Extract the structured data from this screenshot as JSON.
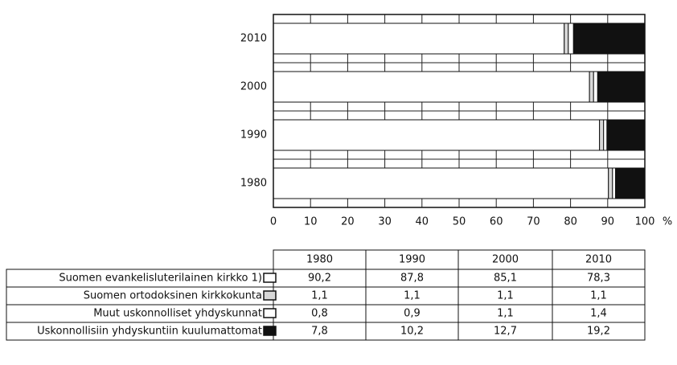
{
  "chart_data": {
    "type": "stacked-bar-horizontal",
    "categories": [
      "1980",
      "1990",
      "2000",
      "2010"
    ],
    "series": [
      {
        "name": "Suomen evankelisluterilainen kirkko 1)",
        "color": "#ffffff",
        "values": [
          90.2,
          87.8,
          85.1,
          78.3
        ],
        "value_labels": [
          "90,2",
          "87,8",
          "85,1",
          "78,3"
        ]
      },
      {
        "name": "Suomen ortodoksinen kirkkokunta",
        "color": "#d8d8d8",
        "values": [
          1.1,
          1.1,
          1.1,
          1.1
        ],
        "value_labels": [
          "1,1",
          "1,1",
          "1,1",
          "1,1"
        ]
      },
      {
        "name": "Muut uskonnolliset yhdyskunnat",
        "color": "#ffffff",
        "values": [
          0.8,
          0.9,
          1.1,
          1.4
        ],
        "value_labels": [
          "0,8",
          "0,9",
          "1,1",
          "1,4"
        ]
      },
      {
        "name": "Uskonnollisiin yhdyskuntiin kuulumattomat",
        "color": "#111111",
        "values": [
          7.8,
          10.2,
          12.7,
          19.2
        ],
        "value_labels": [
          "7,8",
          "10,2",
          "12,7",
          "19,2"
        ]
      }
    ],
    "xlim": [
      0,
      100
    ],
    "xticks": [
      0,
      10,
      20,
      30,
      40,
      50,
      60,
      70,
      80,
      90,
      100
    ],
    "x_unit": "%",
    "grid": true
  }
}
